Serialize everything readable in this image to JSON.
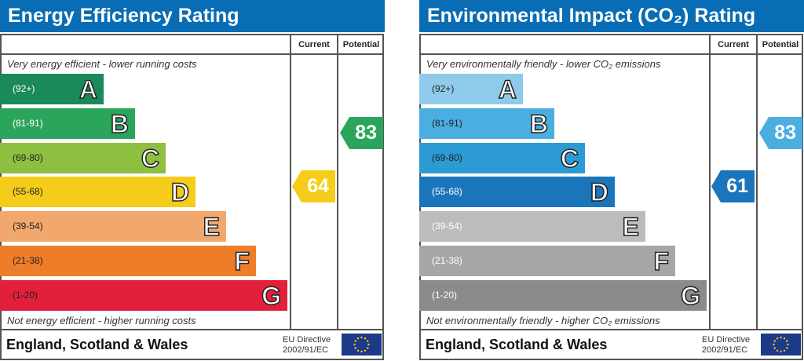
{
  "panels": [
    {
      "title": "Energy Efficiency Rating",
      "current_label": "Current",
      "potential_label": "Potential",
      "top_note": "Very energy efficient - lower running costs",
      "bottom_note": "Not energy efficient - higher running costs",
      "bands": [
        {
          "range": "(92+)",
          "letter": "A",
          "color": "#1a8a5a"
        },
        {
          "range": "(81-91)",
          "letter": "B",
          "color": "#2ba55c"
        },
        {
          "range": "(69-80)",
          "letter": "C",
          "color": "#8dbf40"
        },
        {
          "range": "(55-68)",
          "letter": "D",
          "color": "#f5cc1a"
        },
        {
          "range": "(39-54)",
          "letter": "E",
          "color": "#f2a86c"
        },
        {
          "range": "(21-38)",
          "letter": "F",
          "color": "#ee7d2a"
        },
        {
          "range": "(1-20)",
          "letter": "G",
          "color": "#e2203c"
        }
      ],
      "current": {
        "value": "64",
        "band": "D",
        "color": "#f5cc1a"
      },
      "potential": {
        "value": "83",
        "band": "B",
        "color": "#2ba55c"
      },
      "footer": "England, Scotland & Wales",
      "directive_line1": "EU Directive",
      "directive_line2": "2002/91/EC"
    },
    {
      "title": "Environmental Impact (CO₂) Rating",
      "current_label": "Current",
      "potential_label": "Potential",
      "top_note": "Very environmentally friendly - lower CO₂ emissions",
      "bottom_note": "Not environmentally friendly - higher CO₂ emissions",
      "bands": [
        {
          "range": "(92+)",
          "letter": "A",
          "color": "#8ecbea"
        },
        {
          "range": "(81-91)",
          "letter": "B",
          "color": "#4aafe0"
        },
        {
          "range": "(69-80)",
          "letter": "C",
          "color": "#2c9bd4"
        },
        {
          "range": "(55-68)",
          "letter": "D",
          "color": "#1b75bb"
        },
        {
          "range": "(39-54)",
          "letter": "E",
          "color": "#bcbcbc"
        },
        {
          "range": "(21-38)",
          "letter": "F",
          "color": "#a6a6a6"
        },
        {
          "range": "(1-20)",
          "letter": "G",
          "color": "#8b8b8b"
        }
      ],
      "current": {
        "value": "61",
        "band": "D",
        "color": "#1b75bb"
      },
      "potential": {
        "value": "83",
        "band": "B",
        "color": "#4aafe0"
      },
      "footer": "England, Scotland & Wales",
      "directive_line1": "EU Directive",
      "directive_line2": "2002/91/EC"
    }
  ],
  "icons": {
    "eu_flag": "eu-flag-icon"
  }
}
